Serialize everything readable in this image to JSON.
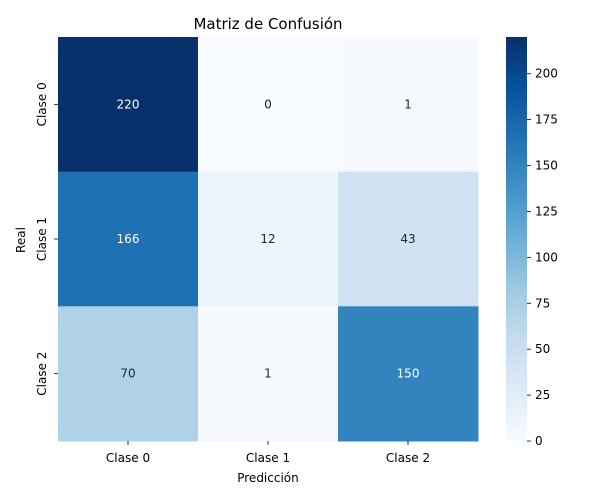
{
  "chart_data": {
    "type": "heatmap",
    "title": "Matriz de Confusión",
    "xlabel": "Predicción",
    "ylabel": "Real",
    "x_categories": [
      "Clase 0",
      "Clase 1",
      "Clase 2"
    ],
    "y_categories": [
      "Clase 0",
      "Clase 1",
      "Clase 2"
    ],
    "values": [
      [
        220,
        0,
        1
      ],
      [
        166,
        12,
        43
      ],
      [
        70,
        1,
        150
      ]
    ],
    "colormap": "Blues",
    "vmin": 0,
    "vmax": 220,
    "colorbar_ticks": [
      0,
      25,
      50,
      75,
      100,
      125,
      150,
      175,
      200
    ],
    "colors": {
      "low": "#f7fbff",
      "high": "#08306b",
      "text_dark": "#262626",
      "text_light": "#ffffff"
    }
  }
}
